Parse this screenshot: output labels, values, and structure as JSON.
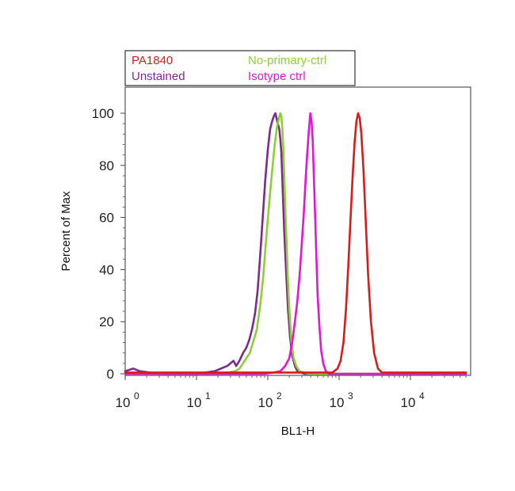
{
  "chart_data": {
    "type": "line",
    "title": "",
    "xlabel": "BL1-H",
    "ylabel": "Percent of Max",
    "x_scale": "log",
    "xlim": [
      1,
      60000
    ],
    "ylim": [
      0,
      110
    ],
    "x_ticks": [
      {
        "base": "10",
        "exp": "0"
      },
      {
        "base": "10",
        "exp": "1"
      },
      {
        "base": "10",
        "exp": "2"
      },
      {
        "base": "10",
        "exp": "3"
      },
      {
        "base": "10",
        "exp": "4"
      }
    ],
    "y_ticks": [
      "0",
      "20",
      "40",
      "60",
      "80",
      "100"
    ],
    "grid": false,
    "legend_position": "top-left",
    "series": [
      {
        "name": "Unstained",
        "color": "#7b2c8b",
        "x": [
          1,
          1.3,
          1.6,
          3,
          10,
          18,
          22,
          27,
          30,
          33,
          36,
          40,
          45,
          50,
          55,
          60,
          66,
          72,
          78,
          85,
          92,
          100,
          108,
          115,
          122,
          128,
          133,
          138,
          145,
          150,
          155,
          162,
          170,
          180,
          192,
          205,
          220,
          240,
          260,
          290,
          330,
          400,
          60000
        ],
        "y": [
          1,
          2,
          1,
          0,
          0,
          1,
          2,
          3,
          4,
          5,
          3,
          5,
          8,
          10,
          13,
          17,
          23,
          32,
          45,
          60,
          74,
          86,
          94,
          97,
          99,
          100,
          98,
          96,
          94,
          90,
          85,
          70,
          55,
          40,
          25,
          14,
          7,
          3,
          1,
          0.5,
          0,
          0,
          0
        ]
      },
      {
        "name": "No-primary-ctrl",
        "color": "#8fce3a",
        "x": [
          1,
          20,
          28,
          35,
          40,
          45,
          50,
          56,
          62,
          70,
          78,
          86,
          95,
          105,
          115,
          125,
          135,
          143,
          150,
          155,
          160,
          165,
          172,
          180,
          190,
          200,
          215,
          230,
          250,
          280,
          320,
          380,
          460,
          60000
        ],
        "y": [
          0,
          0,
          0.5,
          1,
          2,
          4,
          6,
          8,
          12,
          17,
          26,
          37,
          52,
          66,
          78,
          88,
          95,
          98,
          100,
          99,
          94,
          86,
          72,
          56,
          38,
          25,
          12,
          6,
          3,
          1,
          0.5,
          0,
          0,
          0
        ]
      },
      {
        "name": "Isotype ctrl",
        "color": "#e316d2",
        "x": [
          1,
          90,
          120,
          150,
          175,
          200,
          220,
          240,
          260,
          280,
          300,
          320,
          340,
          360,
          380,
          395,
          410,
          425,
          440,
          460,
          480,
          500,
          530,
          560,
          600,
          650,
          720,
          60000
        ],
        "y": [
          0,
          0,
          0.5,
          1,
          3,
          6,
          12,
          20,
          28,
          38,
          50,
          62,
          75,
          86,
          95,
          100,
          97,
          90,
          78,
          62,
          45,
          30,
          18,
          9,
          4,
          1,
          0,
          0
        ]
      },
      {
        "name": "PA1840",
        "color": "#d91b1b",
        "x": [
          1,
          500,
          800,
          950,
          1050,
          1150,
          1250,
          1350,
          1450,
          1550,
          1650,
          1750,
          1850,
          1950,
          2050,
          2200,
          2350,
          2550,
          2800,
          3100,
          3500,
          4000,
          60000
        ],
        "y": [
          0.5,
          0.5,
          0.5,
          2,
          5,
          12,
          25,
          42,
          60,
          76,
          89,
          97,
          100,
          98,
          92,
          78,
          60,
          38,
          20,
          8,
          2,
          0.5,
          0.5
        ]
      }
    ],
    "legend": [
      {
        "label": "PA1840",
        "color": "#d91b1b"
      },
      {
        "label": "No-primary-ctrl",
        "color": "#8fce3a"
      },
      {
        "label": "Unstained",
        "color": "#7b2c8b"
      },
      {
        "label": "Isotype ctrl",
        "color": "#e316d2"
      }
    ]
  }
}
